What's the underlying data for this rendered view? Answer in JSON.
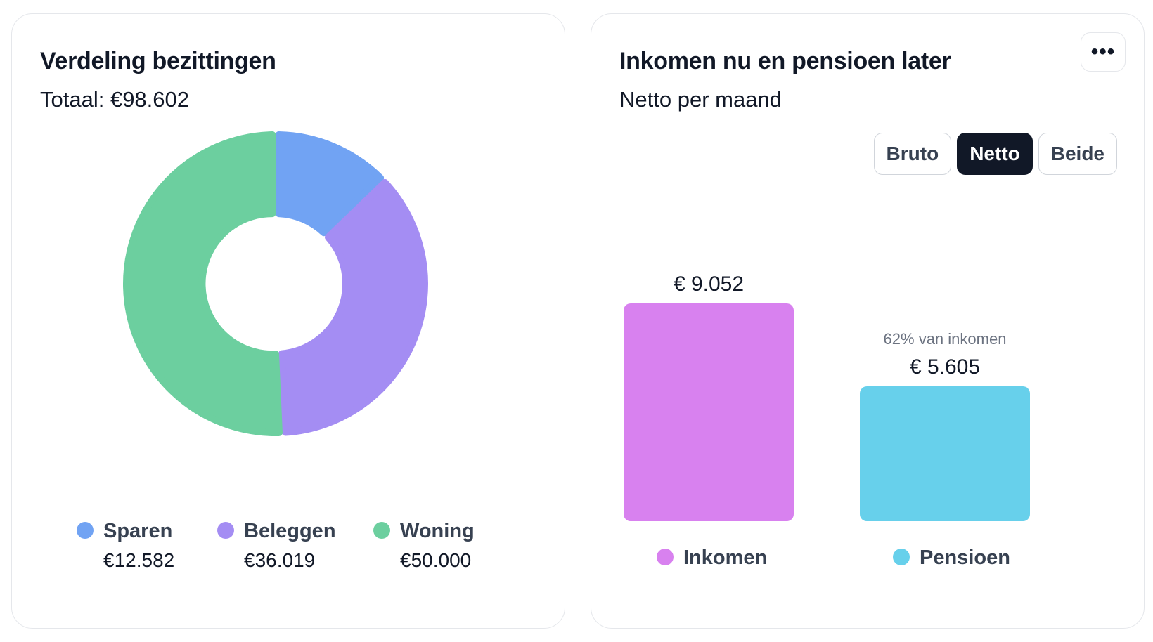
{
  "left_card": {
    "title": "Verdeling bezittingen",
    "subtitle": "Totaal: €98.602"
  },
  "right_card": {
    "title": "Inkomen nu en pensioen later",
    "subtitle": "Netto per maand",
    "more_icon": "more-horizontal-icon",
    "more_label": "•••",
    "toggles": [
      {
        "label": "Bruto",
        "active": false
      },
      {
        "label": "Netto",
        "active": true
      },
      {
        "label": "Beide",
        "active": false
      }
    ]
  },
  "chart_data": [
    {
      "type": "pie",
      "variant": "donut",
      "title": "Verdeling bezittingen",
      "total": 98602,
      "slices": [
        {
          "name": "Sparen",
          "value": 12582,
          "label": "€12.582",
          "color": "#71a3f3"
        },
        {
          "name": "Beleggen",
          "value": 36019,
          "label": "€36.019",
          "color": "#a48df3"
        },
        {
          "name": "Woning",
          "value": 50000,
          "label": "€50.000",
          "color": "#6ccf9f"
        }
      ],
      "legend_placement": "bottom"
    },
    {
      "type": "bar",
      "title": "Inkomen nu en pensioen later",
      "categories": [
        "Inkomen",
        "Pensioen"
      ],
      "values": [
        9052,
        5605
      ],
      "value_labels": [
        "€ 9.052",
        "€ 5.605"
      ],
      "colors": [
        "#d881ef",
        "#67d0eb"
      ],
      "annotation": "62% van inkomen",
      "legend_placement": "bottom",
      "grid": false
    }
  ]
}
